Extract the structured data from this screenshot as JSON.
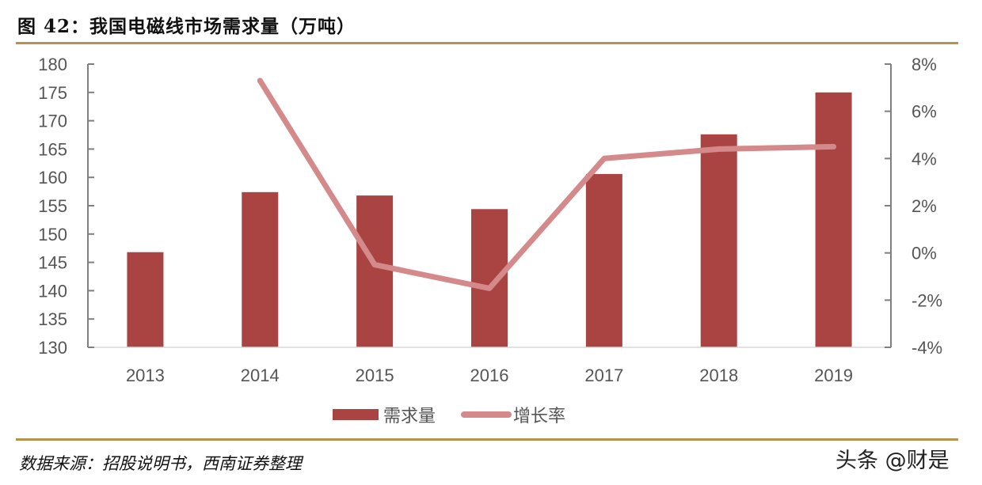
{
  "header": {
    "title": "图 42：我国电磁线市场需求量（万吨）"
  },
  "footer": {
    "source": "数据来源：招股说明书，西南证券整理",
    "watermark": "头条 @财是"
  },
  "colors": {
    "bar": "#a94442",
    "line": "#d48a8a",
    "rule": "#b8914f",
    "axis": "#7f7f7f",
    "text": "#555555"
  },
  "chart_data": {
    "type": "bar+line",
    "title": "我国电磁线市场需求量（万吨）",
    "categories": [
      "2013",
      "2014",
      "2015",
      "2016",
      "2017",
      "2018",
      "2019"
    ],
    "series": [
      {
        "name": "需求量",
        "type": "bar",
        "axis": "left",
        "values": [
          146.8,
          157.4,
          156.8,
          154.4,
          160.6,
          167.6,
          175.0
        ]
      },
      {
        "name": "增长率",
        "type": "line",
        "axis": "right",
        "values": [
          null,
          7.3,
          -0.5,
          -1.5,
          4.0,
          4.4,
          4.5
        ]
      }
    ],
    "left_axis": {
      "ylim": [
        130,
        180
      ],
      "ticks": [
        "130",
        "135",
        "140",
        "145",
        "150",
        "155",
        "160",
        "165",
        "170",
        "175",
        "180"
      ]
    },
    "right_axis": {
      "ylim": [
        -4,
        8
      ],
      "ticks": [
        "-4%",
        "-2%",
        "0%",
        "2%",
        "4%",
        "6%",
        "8%"
      ]
    },
    "xlabel": "",
    "ylabel": "",
    "grid": false,
    "legend_position": "bottom",
    "legend": [
      "需求量",
      "增长率"
    ]
  }
}
